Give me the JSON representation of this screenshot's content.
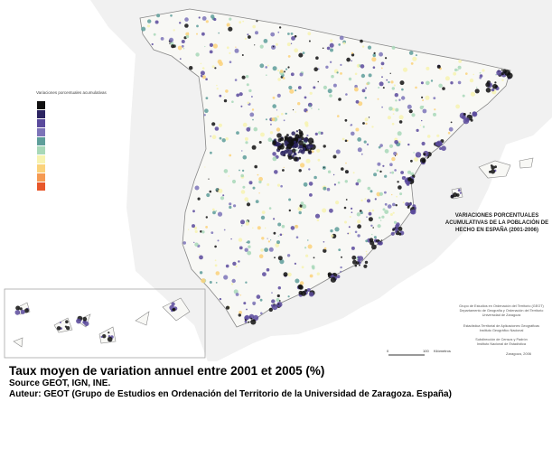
{
  "map": {
    "title": "VARIACIONES PORCENTUALES ACUMULATIVAS DE LA POBLACIÓN DE HECHO EN ESPAÑA (2001-2006)",
    "legend": {
      "title": "Variaciones porcentuales acumulativas",
      "colors": [
        "#111111",
        "#2c2461",
        "#5a4a9c",
        "#7d74b8",
        "#5e9e9a",
        "#a8d8b8",
        "#f7f3b0",
        "#fbd27a",
        "#f59a52",
        "#e8572a"
      ]
    },
    "credits": [
      "Grupo de Estudios en Ordenación del Territorio (GEOT)",
      "Departamento de Geografía y Ordenación del Territorio",
      "Universidad de Zaragoza",
      "Estadística Territorial de Aplicaciones Geográficas",
      "Instituto Geográfico Nacional",
      "Subdirección de Censos y Padrón",
      "Instituto Nacional de Estadística"
    ],
    "place_date": "Zaragoza, 2006",
    "scale": {
      "start": "0",
      "end": "100",
      "unit": "Kilómetros"
    }
  },
  "caption": {
    "title": "Taux moyen de variation annuel entre 2001 et 2005 (%)",
    "source": "Source GEOT, IGN, INE.",
    "author": "Auteur: GEOT (Grupo de Estudios en Ordenación del Territorio de la Universidad de Zaragoza. España)"
  }
}
